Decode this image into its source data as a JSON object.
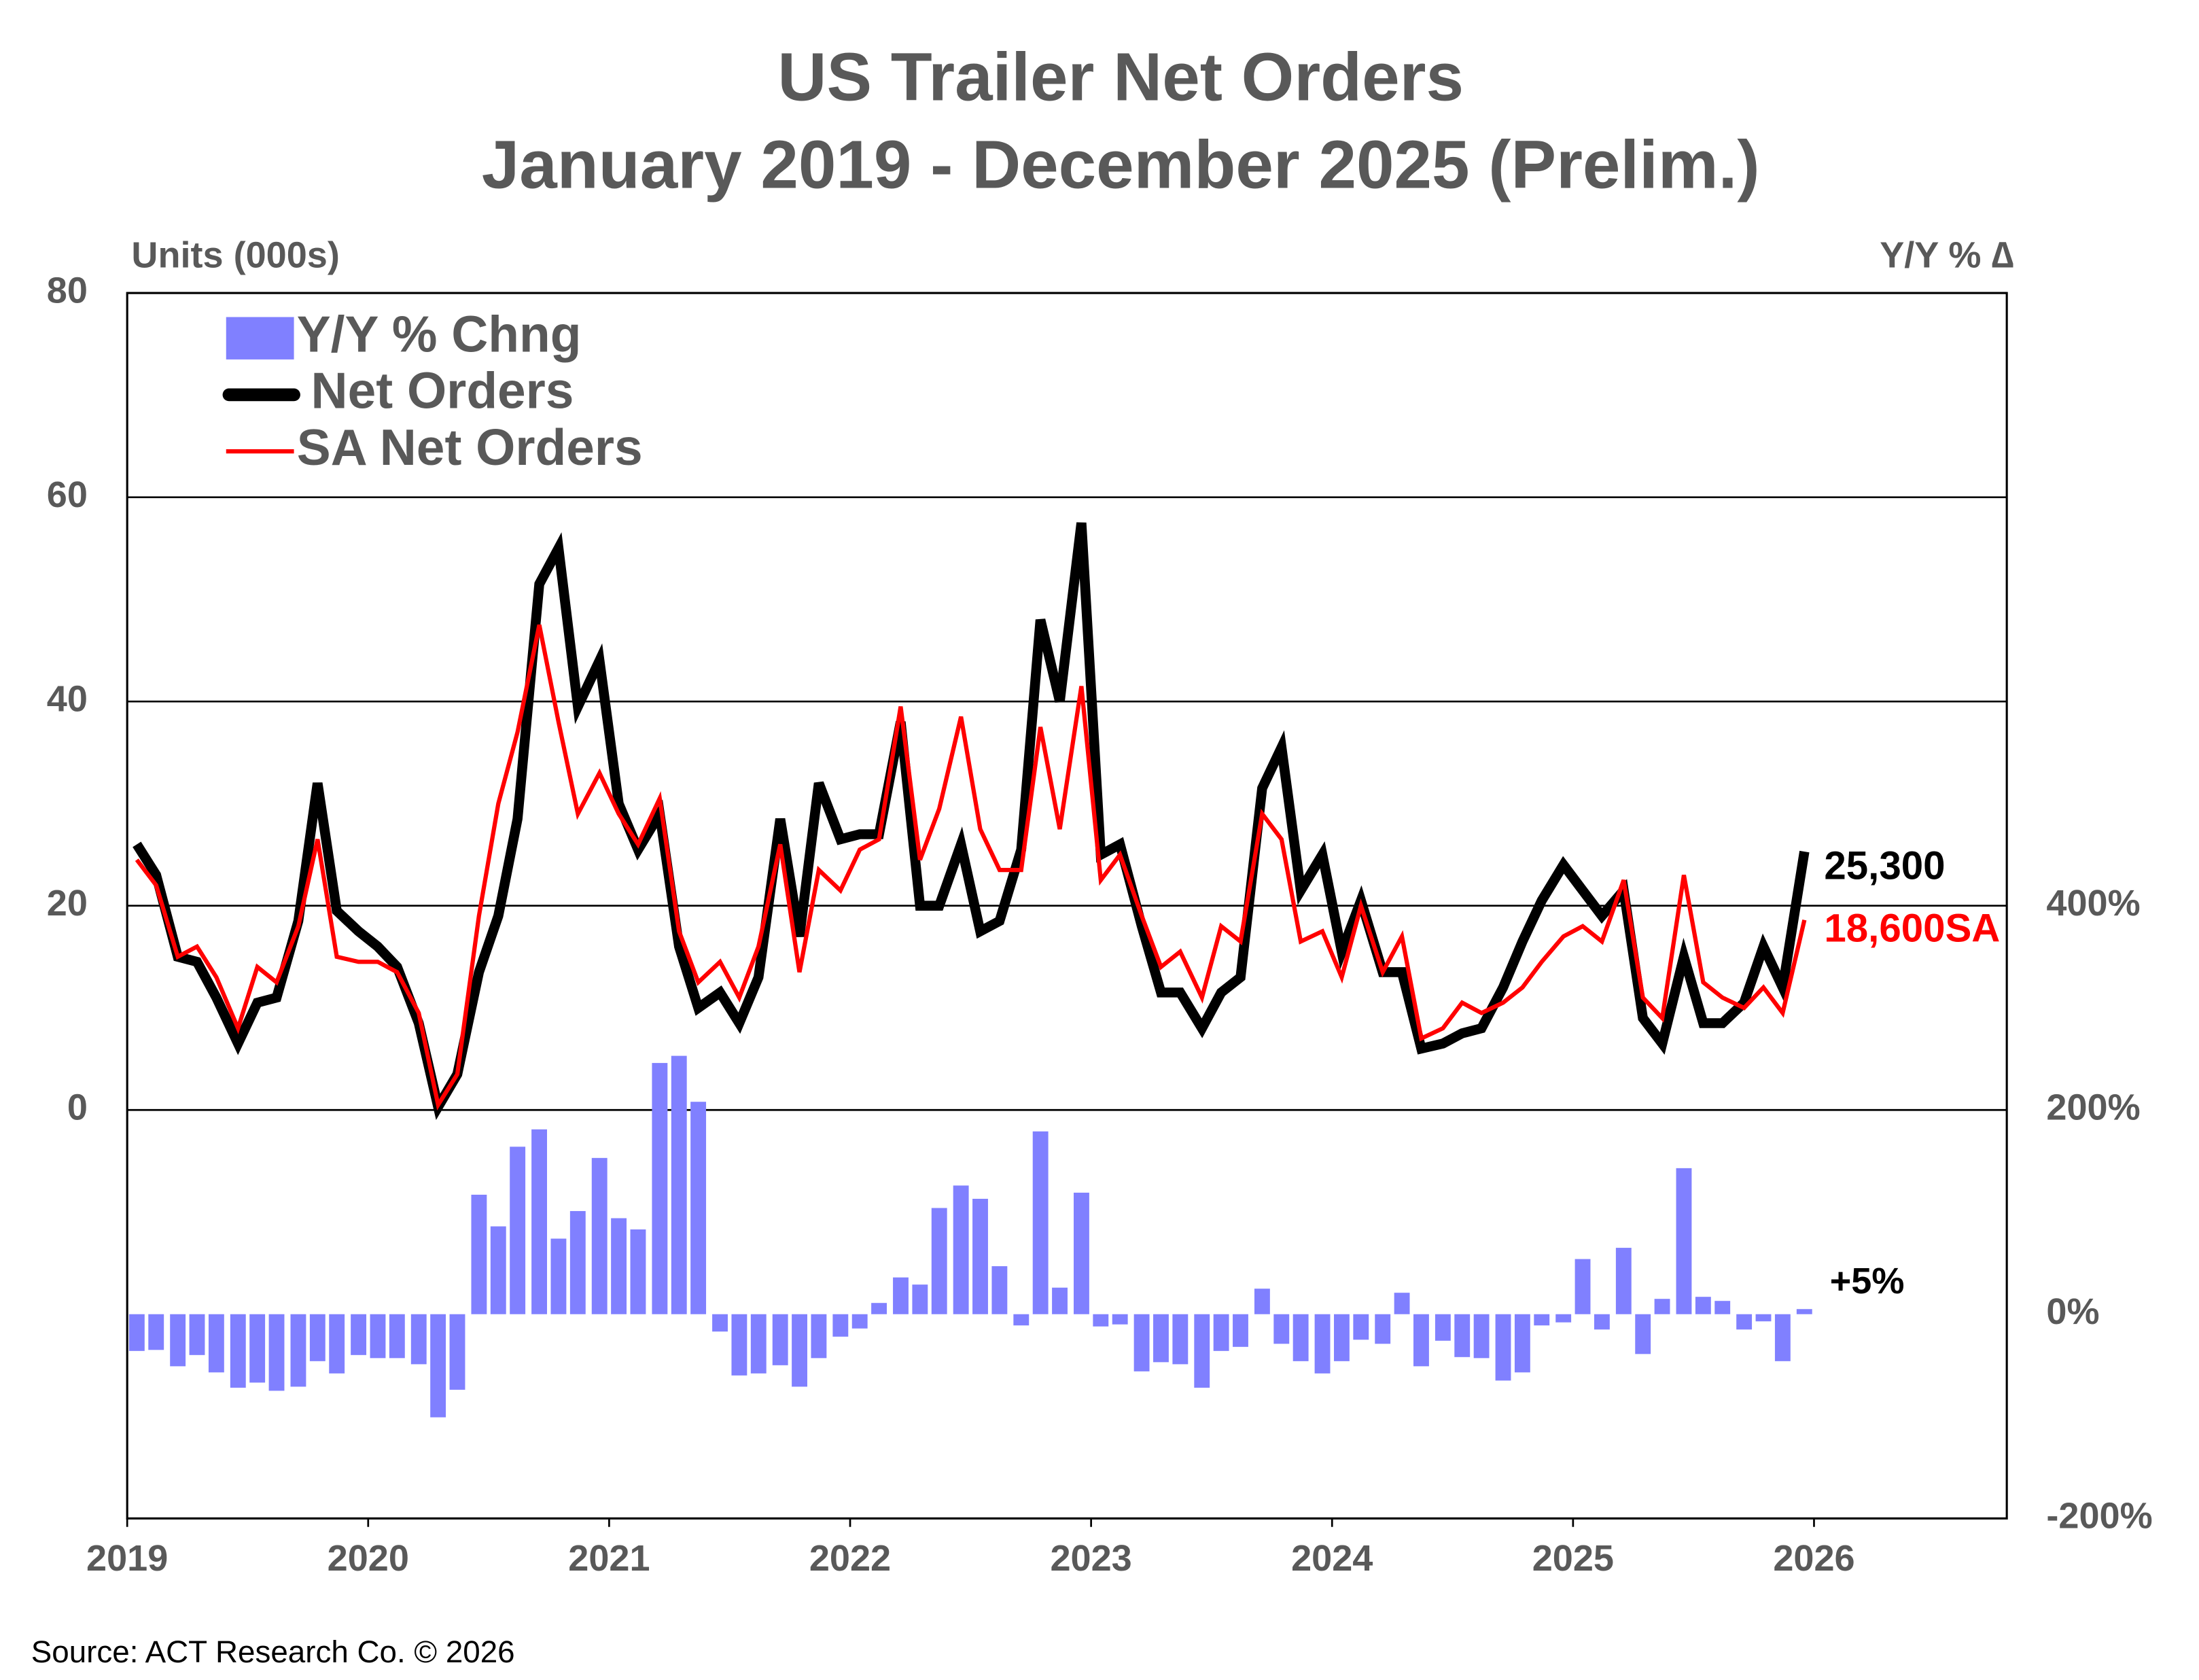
{
  "chart_data": {
    "type": "combo",
    "title": [
      "US Trailer Net Orders",
      "January 2019 - December 2025 (Prelim.)"
    ],
    "y_label": "Units (000s)",
    "y2_label": "Y/Y % ∆",
    "source": "Source: ACT Research Co. © 2026",
    "legend": "top-left",
    "grid": true,
    "xlim": [
      2019,
      2026.8
    ],
    "xticks": [
      2019,
      2020,
      2021,
      2022,
      2023,
      2024,
      2025,
      2026
    ],
    "ylim": [
      -40,
      80
    ],
    "yticks": [
      0,
      20,
      40,
      60,
      80
    ],
    "y2lim": [
      -200,
      1000
    ],
    "y2ticks": [
      {
        "value": -200,
        "label": "-200%"
      },
      {
        "value": 0,
        "label": "0%"
      },
      {
        "value": 200,
        "label": "200%"
      },
      {
        "value": 400,
        "label": "400%"
      }
    ],
    "x": [
      2019.04,
      2019.12,
      2019.21,
      2019.29,
      2019.37,
      2019.46,
      2019.54,
      2019.62,
      2019.71,
      2019.79,
      2019.87,
      2019.96,
      2020.04,
      2020.12,
      2020.21,
      2020.29,
      2020.37,
      2020.46,
      2020.54,
      2020.62,
      2020.71,
      2020.79,
      2020.87,
      2020.96,
      2021.04,
      2021.12,
      2021.21,
      2021.29,
      2021.37,
      2021.46,
      2021.54,
      2021.62,
      2021.71,
      2021.79,
      2021.87,
      2021.96,
      2022.04,
      2022.12,
      2022.21,
      2022.29,
      2022.37,
      2022.46,
      2022.54,
      2022.62,
      2022.71,
      2022.79,
      2022.87,
      2022.96,
      2023.04,
      2023.12,
      2023.21,
      2023.29,
      2023.37,
      2023.46,
      2023.54,
      2023.62,
      2023.71,
      2023.79,
      2023.87,
      2023.96,
      2024.04,
      2024.12,
      2024.21,
      2024.29,
      2024.37,
      2024.46,
      2024.54,
      2024.62,
      2024.71,
      2024.79,
      2024.87,
      2024.96,
      2025.04,
      2025.12,
      2025.21,
      2025.29,
      2025.37,
      2025.46,
      2025.54,
      2025.62,
      2025.71,
      2025.79,
      2025.87,
      2025.96
    ],
    "series": [
      {
        "name": "Y/Y % Chng",
        "type": "bar",
        "axis": "y2",
        "color": "#8080ff",
        "values": [
          -36,
          -35,
          -51,
          -40,
          -57,
          -72,
          -67,
          -75,
          -71,
          -46,
          -58,
          -40,
          -43,
          -43,
          -49,
          -101,
          -74,
          117,
          86,
          164,
          181,
          74,
          101,
          153,
          94,
          83,
          246,
          253,
          208,
          -17,
          -60,
          -58,
          -50,
          -71,
          -43,
          -22,
          -14,
          11,
          36,
          29,
          104,
          126,
          113,
          47,
          -11,
          179,
          26,
          119,
          -12,
          -10,
          -56,
          -47,
          -49,
          -72,
          -36,
          -32,
          25,
          -29,
          -46,
          -58,
          -46,
          -25,
          -29,
          21,
          -51,
          -26,
          -42,
          -43,
          -65,
          -57,
          -11,
          -8,
          54,
          -15,
          65,
          -39,
          15,
          143,
          17,
          13,
          -15,
          -7,
          -46,
          5
        ],
        "value_labels": [
          null,
          null,
          null,
          null,
          null,
          null,
          null,
          null,
          null,
          null,
          null,
          null,
          null,
          null,
          null,
          null,
          null,
          null,
          null,
          null,
          null,
          null,
          null,
          null,
          null,
          null,
          null,
          null,
          null,
          null,
          null,
          null,
          null,
          null,
          null,
          null,
          null,
          null,
          null,
          null,
          null,
          null,
          null,
          null,
          null,
          null,
          null,
          null,
          null,
          null,
          null,
          null,
          null,
          null,
          null,
          null,
          null,
          null,
          null,
          null,
          null,
          null,
          null,
          null,
          null,
          null,
          null,
          null,
          null,
          null,
          null,
          null,
          null,
          null,
          null,
          null,
          null,
          null,
          null,
          null,
          null,
          null,
          null,
          "+5%"
        ]
      },
      {
        "name": "Net Orders",
        "type": "line",
        "color": "#000000",
        "values": [
          26,
          23,
          15,
          14.5,
          11,
          6.5,
          10.5,
          11,
          18.5,
          32,
          19.5,
          17.5,
          16,
          14,
          8.5,
          0.3,
          3.5,
          13.5,
          19,
          28.5,
          51.5,
          55,
          39.5,
          44,
          30,
          25.5,
          29,
          16,
          10,
          11.5,
          8.5,
          13,
          28.5,
          17,
          32,
          26.5,
          27,
          27,
          38,
          20,
          20,
          26,
          17.5,
          18.5,
          25.5,
          48,
          40,
          57.5,
          25,
          26,
          18,
          11.5,
          11.5,
          8,
          11.5,
          13,
          31.5,
          35.5,
          21.5,
          25,
          15.5,
          20.5,
          13.5,
          13.5,
          6,
          6.5,
          7.5,
          8,
          12,
          16.5,
          20.5,
          24,
          21.5,
          19,
          21.5,
          9,
          6.5,
          15,
          8.5,
          8.5,
          10.5,
          16,
          12,
          25.3
        ],
        "value_labels": [
          null,
          null,
          null,
          null,
          null,
          null,
          null,
          null,
          null,
          null,
          null,
          null,
          null,
          null,
          null,
          null,
          null,
          null,
          null,
          null,
          null,
          null,
          null,
          null,
          null,
          null,
          null,
          null,
          null,
          null,
          null,
          null,
          null,
          null,
          null,
          null,
          null,
          null,
          null,
          null,
          null,
          null,
          null,
          null,
          null,
          null,
          null,
          null,
          null,
          null,
          null,
          null,
          null,
          null,
          null,
          null,
          null,
          null,
          null,
          null,
          null,
          null,
          null,
          null,
          null,
          null,
          null,
          null,
          null,
          null,
          null,
          null,
          null,
          null,
          null,
          null,
          null,
          null,
          null,
          null,
          null,
          null,
          null,
          "25,300"
        ]
      },
      {
        "name": "SA Net Orders",
        "type": "line",
        "color": "#ff0000",
        "values": [
          24.5,
          22,
          15,
          16,
          13,
          8,
          14,
          12.5,
          18,
          26.5,
          15,
          14.5,
          14.5,
          13.5,
          9.5,
          0.5,
          3.5,
          19,
          30,
          37,
          47.5,
          38,
          29,
          33,
          29,
          26,
          30.5,
          17.5,
          12.5,
          14.5,
          11,
          16,
          26,
          13.5,
          23.5,
          21.5,
          25.5,
          26.5,
          39.5,
          24.5,
          29.5,
          38.5,
          27.5,
          23.5,
          23.5,
          37.5,
          27.5,
          41.5,
          22.5,
          25,
          19,
          14,
          15.5,
          11,
          18,
          16.5,
          29,
          26.5,
          16.5,
          17.5,
          13,
          20,
          13.5,
          17,
          7,
          8,
          10.5,
          9.5,
          10.5,
          12,
          14.5,
          17,
          18,
          16.5,
          22.5,
          11,
          9,
          23,
          12.5,
          11,
          10,
          12,
          9.5,
          18.6
        ],
        "value_labels": [
          null,
          null,
          null,
          null,
          null,
          null,
          null,
          null,
          null,
          null,
          null,
          null,
          null,
          null,
          null,
          null,
          null,
          null,
          null,
          null,
          null,
          null,
          null,
          null,
          null,
          null,
          null,
          null,
          null,
          null,
          null,
          null,
          null,
          null,
          null,
          null,
          null,
          null,
          null,
          null,
          null,
          null,
          null,
          null,
          null,
          null,
          null,
          null,
          null,
          null,
          null,
          null,
          null,
          null,
          null,
          null,
          null,
          null,
          null,
          null,
          null,
          null,
          null,
          null,
          null,
          null,
          null,
          null,
          null,
          null,
          null,
          null,
          null,
          null,
          null,
          null,
          null,
          null,
          null,
          null,
          null,
          null,
          null,
          "18,600SA"
        ]
      }
    ]
  }
}
